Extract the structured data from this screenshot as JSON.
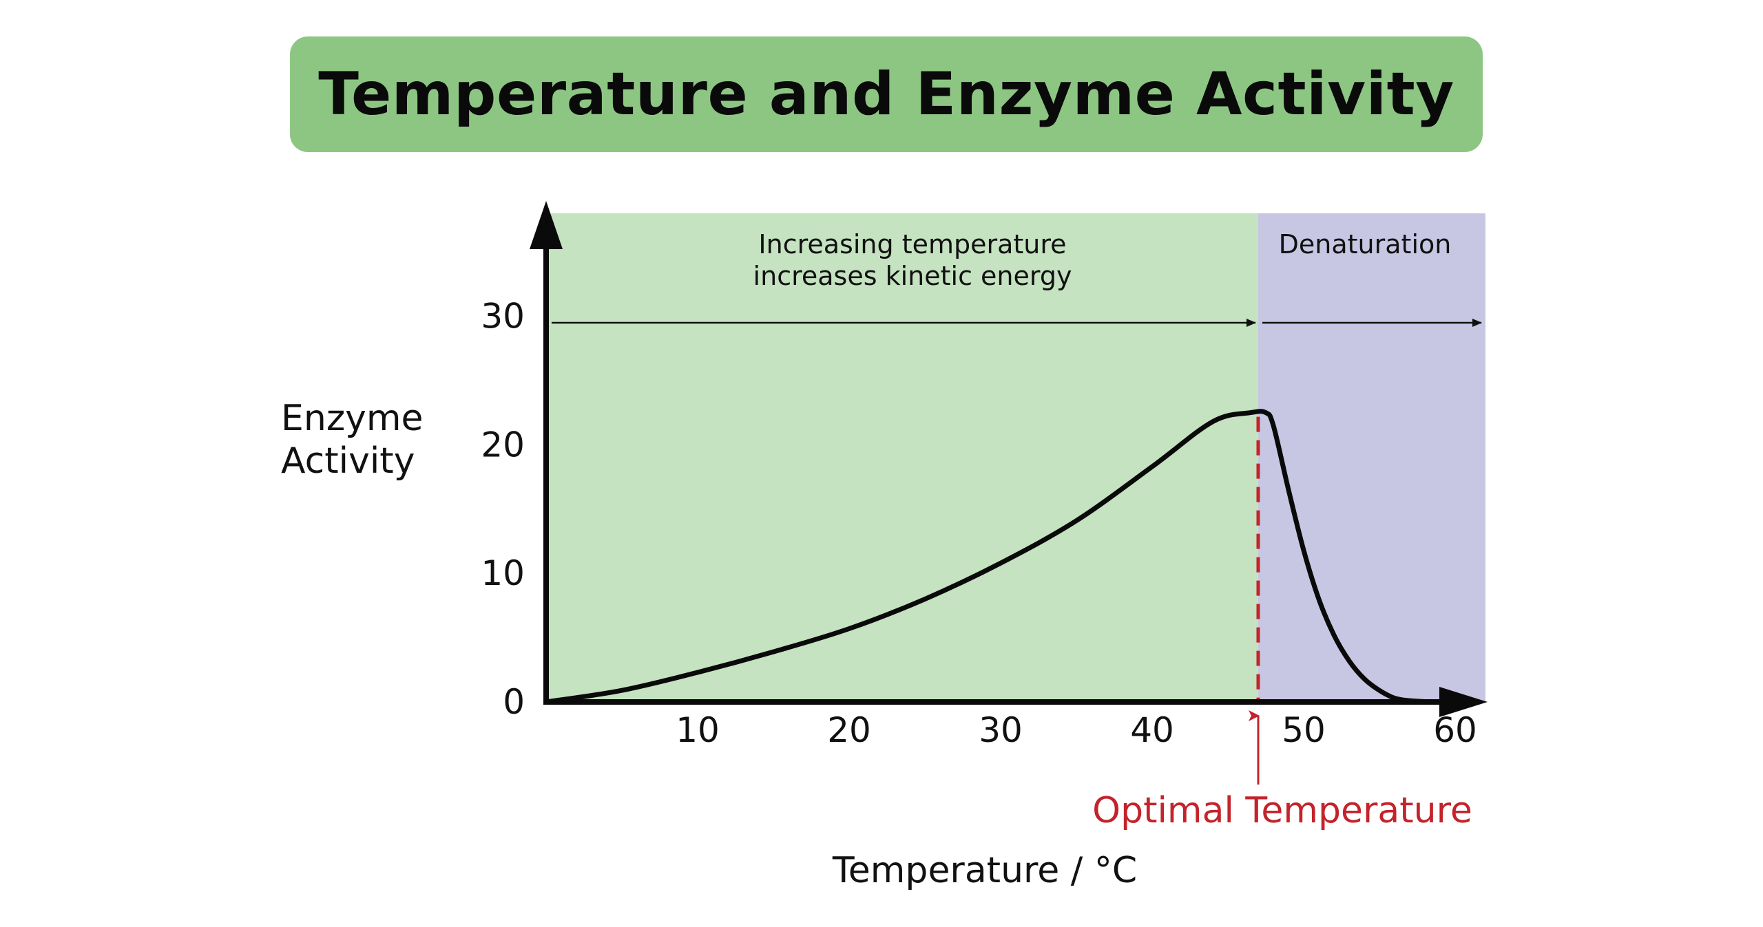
{
  "title": "Temperature and Enzyme Activity",
  "chart_data": {
    "type": "line",
    "title": "Temperature and Enzyme Activity",
    "xlabel": "Temperature / °C",
    "ylabel_lines": [
      "Enzyme",
      "Activity"
    ],
    "xlim": [
      0,
      62
    ],
    "ylim": [
      0,
      38
    ],
    "x_ticks": [
      10,
      20,
      30,
      40,
      50,
      60
    ],
    "y_ticks": [
      0,
      10,
      20,
      30
    ],
    "series": [
      {
        "x": [
          0,
          5,
          10,
          15,
          20,
          25,
          30,
          35,
          40,
          44,
          46.5,
          47.5,
          48,
          49,
          50,
          51,
          52,
          53,
          54,
          55,
          56,
          57,
          58.5
        ],
        "y": [
          0,
          0.9,
          2.3,
          3.9,
          5.7,
          8.0,
          10.8,
          14.1,
          18.3,
          21.8,
          22.5,
          22.5,
          21.5,
          16.5,
          11.8,
          8.0,
          5.2,
          3.2,
          1.8,
          0.9,
          0.3,
          0.1,
          0
        ]
      }
    ],
    "regions": [
      {
        "x_start": 0,
        "x_end": 47,
        "color": "#c5e2c1",
        "label_lines": [
          "Increasing temperature",
          "increases kinetic energy"
        ]
      },
      {
        "x_start": 47,
        "x_end": 62,
        "color": "#c7c7e4",
        "label_lines": [
          "Denaturation"
        ]
      }
    ],
    "annotations": {
      "optimal_x": 47,
      "optimal_label": "Optimal Temperature",
      "optimal_color": "#c4232b"
    },
    "grid": false
  }
}
